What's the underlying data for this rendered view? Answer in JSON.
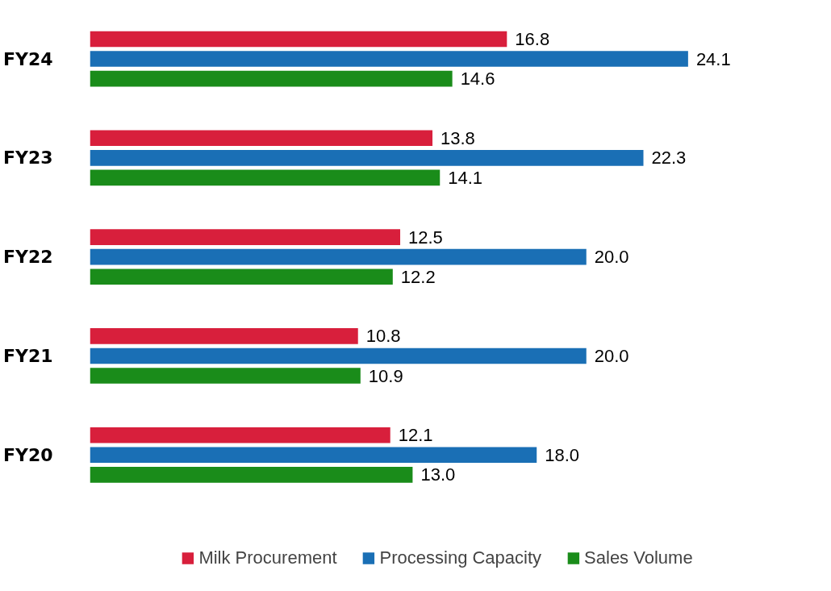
{
  "chart_data": {
    "type": "bar",
    "orientation": "horizontal",
    "categories": [
      "FY24",
      "FY23",
      "FY22",
      "FY21",
      "FY20"
    ],
    "series": [
      {
        "name": "Milk Procurement",
        "color": "#d81f3c",
        "values": [
          16.8,
          13.8,
          12.5,
          10.8,
          12.1
        ],
        "value_labels": [
          "16.8",
          "13.8",
          "12.5",
          "10.8",
          "12.1"
        ]
      },
      {
        "name": "Processing Capacity",
        "color": "#1a6fb5",
        "values": [
          24.1,
          22.3,
          20.0,
          20.0,
          18.0
        ],
        "value_labels": [
          "24.1",
          "22.3",
          "20.0",
          "20.0",
          "18.0"
        ]
      },
      {
        "name": "Sales Volume",
        "color": "#1a8c1a",
        "values": [
          14.6,
          14.1,
          12.2,
          10.9,
          13.0
        ],
        "value_labels": [
          "14.6",
          "14.1",
          "12.2",
          "10.9",
          "13.0"
        ]
      }
    ],
    "tick_labels": "y",
    "grid": false,
    "legend": "bottom"
  }
}
